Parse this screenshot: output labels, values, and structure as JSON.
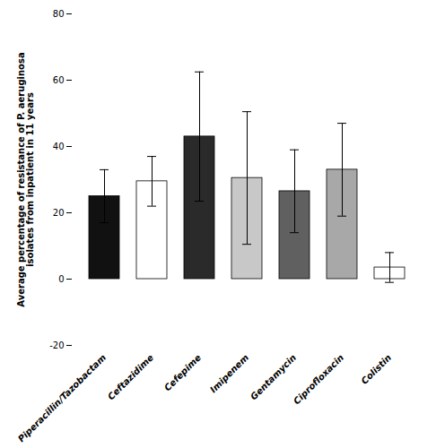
{
  "chart_data": {
    "type": "bar",
    "ylabel": "Average percentage of resistance of P. aeruginosa\nisolates from inpatient in 11 years",
    "categories": [
      "Piperacillin/Tazobactam",
      "Ceftazidime",
      "Cefepime",
      "Imipenem",
      "Gentamycin",
      "Ciprofloxacin",
      "Colistin"
    ],
    "values": [
      25.0,
      29.5,
      43.0,
      30.5,
      26.5,
      33.0,
      3.5
    ],
    "errors": [
      8.0,
      7.5,
      19.5,
      20.0,
      12.5,
      14.0,
      4.5
    ],
    "colors": [
      "#111111",
      "#ffffff",
      "#2a2a2a",
      "#c8c8c8",
      "#606060",
      "#a8a8a8",
      "#ffffff"
    ],
    "ylim": [
      -20,
      80
    ],
    "yticks": [
      -20,
      0,
      20,
      40,
      60,
      80
    ],
    "grid": false
  }
}
